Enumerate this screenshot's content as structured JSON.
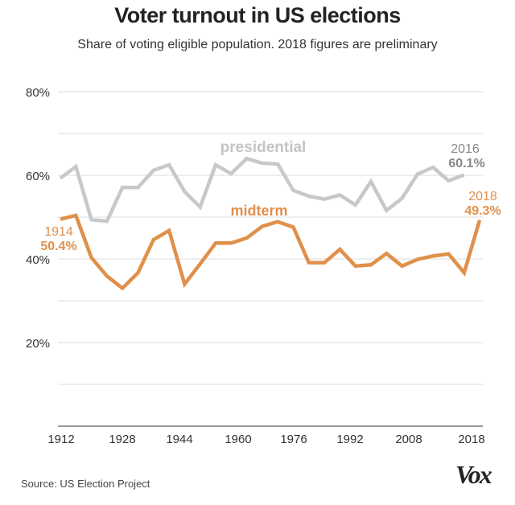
{
  "chart_data": {
    "type": "line",
    "title": "Voter turnout in US elections",
    "subtitle": "Share of voting eligible population. 2018 figures are preliminary",
    "xlabel": "",
    "ylabel": "",
    "ylim": [
      0,
      80
    ],
    "y_ticks": [
      "80%",
      "60%",
      "40%",
      "20%"
    ],
    "y_tick_values": [
      80,
      60,
      40,
      20
    ],
    "x_ticks": [
      "1912",
      "1928",
      "1944",
      "1960",
      "1976",
      "1992",
      "2008",
      "2018"
    ],
    "grid": true,
    "legend": "none (inline labels)",
    "series": [
      {
        "name": "presidential",
        "color": "#c8c8c8",
        "x": [
          1912,
          1916,
          1920,
          1924,
          1928,
          1932,
          1936,
          1940,
          1944,
          1948,
          1952,
          1956,
          1960,
          1964,
          1968,
          1972,
          1976,
          1980,
          1984,
          1988,
          1992,
          1996,
          2000,
          2004,
          2008,
          2012,
          2016
        ],
        "values": [
          59.3,
          62.1,
          49.4,
          49.0,
          57.1,
          57.1,
          61.2,
          62.5,
          56.1,
          52.4,
          62.5,
          60.4,
          64.0,
          62.9,
          62.7,
          56.4,
          55.0,
          54.3,
          55.3,
          52.9,
          58.5,
          51.6,
          54.5,
          60.3,
          61.9,
          58.7,
          60.1
        ]
      },
      {
        "name": "midterm",
        "color": "#e0904a",
        "x": [
          1910,
          1914,
          1918,
          1922,
          1926,
          1930,
          1934,
          1938,
          1942,
          1946,
          1950,
          1954,
          1958,
          1962,
          1966,
          1970,
          1974,
          1978,
          1982,
          1986,
          1990,
          1994,
          1998,
          2002,
          2006,
          2010,
          2014,
          2018
        ],
        "values": [
          49.5,
          50.4,
          40.3,
          35.9,
          33.0,
          36.7,
          44.6,
          46.8,
          34.0,
          38.8,
          43.8,
          43.8,
          45.0,
          47.8,
          48.9,
          47.6,
          39.1,
          39.1,
          42.3,
          38.3,
          38.6,
          41.3,
          38.3,
          39.9,
          40.7,
          41.2,
          36.7,
          49.3
        ]
      }
    ],
    "annotations": {
      "presidential_label": "presidential",
      "midterm_label": "midterm",
      "p2016_year": "2016",
      "p2016_value": "60.1%",
      "m2018_year": "2018",
      "m2018_value": "49.3%",
      "m1914_year": "1914",
      "m1914_value": "50.4%",
      "gray_label_color": "#888888"
    }
  },
  "footer": {
    "source": "Source: US Election Project",
    "logo": "Vox"
  }
}
